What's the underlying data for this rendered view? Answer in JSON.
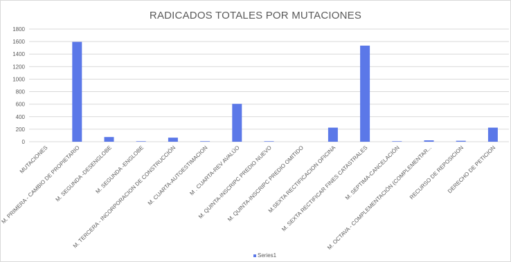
{
  "chart_data": {
    "type": "bar",
    "title": "RADICADOS TOTALES POR MUTACIONES",
    "xlabel": "",
    "ylabel": "",
    "ylim": [
      0,
      1800
    ],
    "yticks": [
      0,
      200,
      400,
      600,
      800,
      1000,
      1200,
      1400,
      1600,
      1800
    ],
    "grid": true,
    "legend_position": "bottom",
    "bar_color": "#5b78e8",
    "categories": [
      "MUTACIONES",
      "M. PRIMERA - CAMBIO DE PROPIETARIO",
      "M. SEGUNDA -DESENGLOBE",
      "M. SEGUNDA -ENGLOBE",
      "M. TERCERA - INCORPORACION DE CONSTRUCCIÓN",
      "M. CUARTA-AUTOESTIMACION",
      "M . CUARTA-REV AVALÚO",
      "M. QUINTA-INSCRIPC PREDIO NUEVO",
      "M. QUINTA-INSCRIPC PREDIO OMITIDO",
      "M.SEXTA RECTIFICACION OFICINA",
      "M. SEXTA RECTIFICAR FINES CATASTRALES",
      "M. SEPTIMA-CANCELACIÓN",
      "M. OCTAVA - COMPLEMENTACIÓN (COMPLEMENTAR...",
      "RECURSO DE REPOSICION",
      "DERECHO DE PETICION"
    ],
    "series": [
      {
        "name": "Series1",
        "values": [
          0,
          1595,
          75,
          8,
          65,
          8,
          605,
          8,
          0,
          225,
          1535,
          8,
          22,
          15,
          225
        ]
      }
    ]
  }
}
